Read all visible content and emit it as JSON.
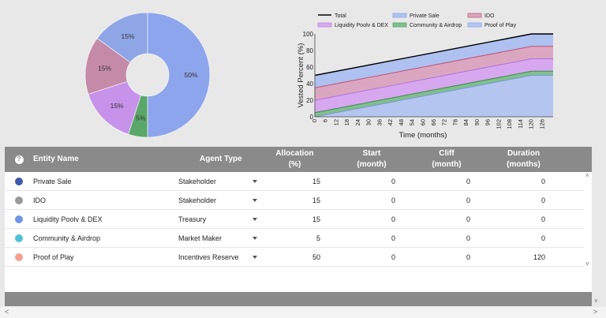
{
  "chart_data": [
    {
      "type": "pie",
      "categories": [
        "Private Sale",
        "IDO",
        "Liquidity Poolv & DEX",
        "Community & Airdrop",
        "Proof of Play"
      ],
      "values": [
        15,
        15,
        15,
        5,
        50
      ],
      "labels": [
        "15%",
        "15%",
        "15%",
        "5%",
        "50%"
      ],
      "colors": [
        "#8fa6e6",
        "#c58aa8",
        "#c792ea",
        "#5aa76a",
        "#8da5ec"
      ]
    },
    {
      "type": "area",
      "x": [
        0,
        6,
        12,
        18,
        24,
        30,
        36,
        42,
        48,
        54,
        60,
        66,
        72,
        78,
        84,
        90,
        96,
        102,
        108,
        114,
        120,
        126
      ],
      "xlabel": "Time (months)",
      "ylabel": "Vested Percent (%)",
      "ylim": [
        0,
        100
      ],
      "xlim": [
        0,
        132
      ],
      "yticks": [
        0,
        20,
        40,
        60,
        80,
        100
      ],
      "legend": [
        "Total",
        "Private Sale",
        "IDO",
        "Liquidity Poolv & DEX",
        "Community & Airdrop",
        "Proof of Play"
      ],
      "legend_colors": [
        "#000000",
        "#8fa9e8",
        "#c06080",
        "#c08ae8",
        "#5aa76a",
        "#8da5ec"
      ],
      "series": [
        {
          "name": "Proof of Play",
          "points": [
            [
              0,
              0
            ],
            [
              120,
              50
            ],
            [
              132,
              50
            ]
          ]
        },
        {
          "name": "Community & Airdrop",
          "points": [
            [
              0,
              5
            ],
            [
              120,
              55
            ],
            [
              132,
              55
            ]
          ]
        },
        {
          "name": "Liquidity Poolv & DEX",
          "points": [
            [
              0,
              20
            ],
            [
              120,
              70
            ],
            [
              132,
              70
            ]
          ]
        },
        {
          "name": "IDO",
          "points": [
            [
              0,
              35
            ],
            [
              120,
              85
            ],
            [
              132,
              85
            ]
          ]
        },
        {
          "name": "Private Sale",
          "points": [
            [
              0,
              50
            ],
            [
              120,
              100
            ],
            [
              132,
              100
            ]
          ]
        },
        {
          "name": "Total",
          "points": [
            [
              0,
              50
            ],
            [
              120,
              100
            ],
            [
              132,
              100
            ]
          ]
        }
      ]
    }
  ],
  "table": {
    "help": "?",
    "headers": {
      "name": "Entity Name",
      "agent": "Agent Type",
      "alloc1": "Allocation",
      "alloc2": "(%)",
      "start1": "Start",
      "start2": "(month)",
      "cliff1": "Cliff",
      "cliff2": "(month)",
      "dur1": "Duration",
      "dur2": "(months)"
    },
    "rows": [
      {
        "color": "#3f5aa8",
        "name": "Private Sale",
        "agent": "Stakeholder",
        "alloc": "15",
        "start": "0",
        "cliff": "0",
        "duration": "0"
      },
      {
        "color": "#9a9a9a",
        "name": "IDO",
        "agent": "Stakeholder",
        "alloc": "15",
        "start": "0",
        "cliff": "0",
        "duration": "0"
      },
      {
        "color": "#6e95e8",
        "name": "Liquidity Poolv & DEX",
        "agent": "Treasury",
        "alloc": "15",
        "start": "0",
        "cliff": "0",
        "duration": "0"
      },
      {
        "color": "#4fc3d6",
        "name": "Community & Airdrop",
        "agent": "Market Maker",
        "alloc": "5",
        "start": "0",
        "cliff": "0",
        "duration": "0"
      },
      {
        "color": "#f2a08e",
        "name": "Proof of Play",
        "agent": "Incentives Reserve",
        "alloc": "50",
        "start": "0",
        "cliff": "0",
        "duration": "120"
      }
    ]
  },
  "scroll": {
    "up": "˄",
    "down": "˅",
    "left": "<",
    "right": ">"
  }
}
